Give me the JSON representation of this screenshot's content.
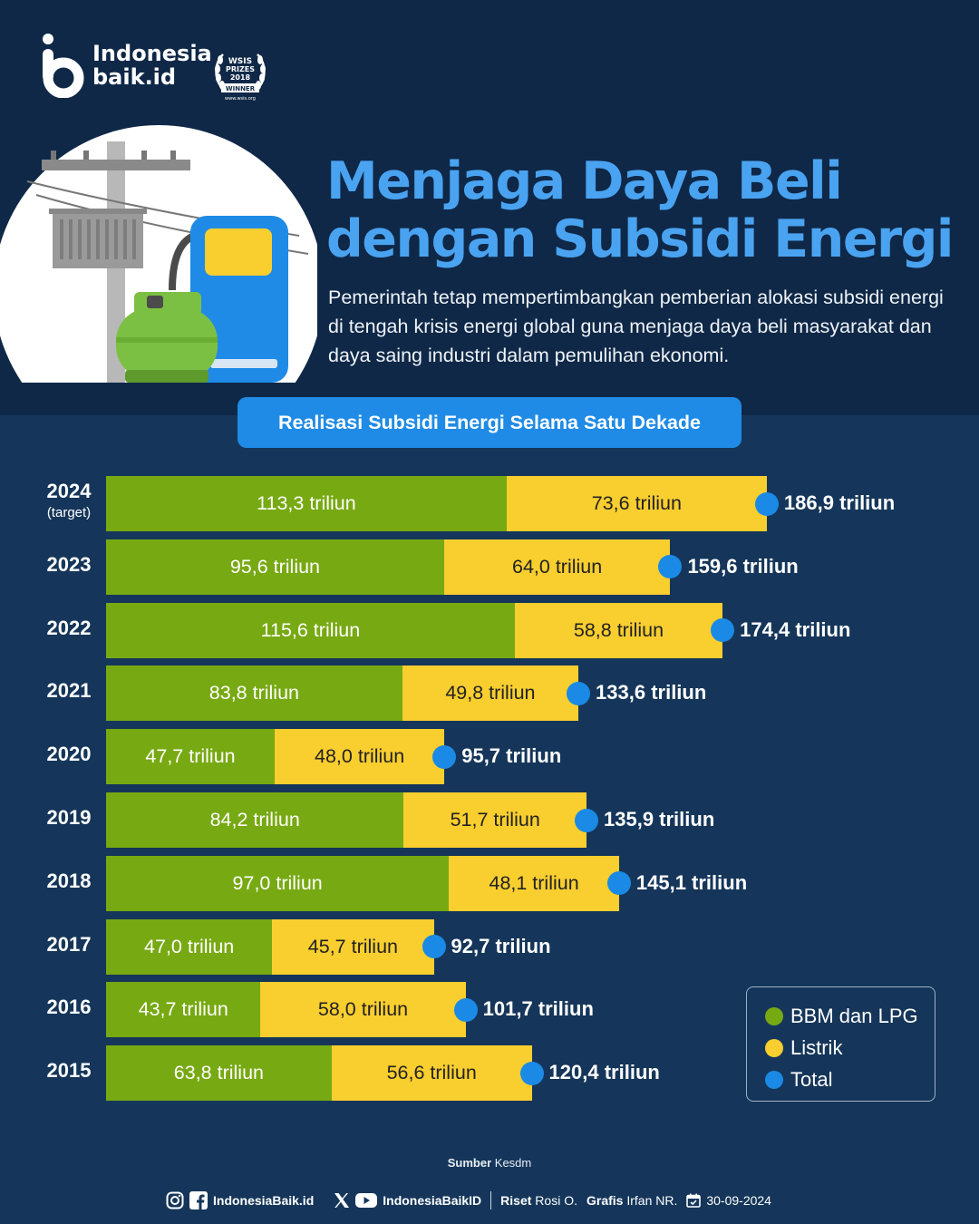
{
  "brand": {
    "line1": "Indonesia",
    "line2": "baik.id"
  },
  "award": {
    "line1": "WSIS",
    "line2": "PRIZES",
    "line3": "2018",
    "line4": "WINNER",
    "url": "www.wsis.org"
  },
  "header": {
    "title_line1": "Menjaga Daya Beli",
    "title_line2": "dengan Subsidi Energi",
    "description": "Pemerintah tetap mempertimbangkan pemberian alokasi subsidi energi di tengah krisis energi global guna menjaga daya beli masyarakat dan daya saing industri dalam pemulihan ekonomi."
  },
  "colors": {
    "bbm": "#77a912",
    "listrik": "#f9ce2f",
    "total": "#1a8ae6",
    "title": "#4aa3f0"
  },
  "chart_data": {
    "type": "bar",
    "orientation": "horizontal",
    "stacked": true,
    "title": "Realisasi Subsidi Energi Selama Satu Dekade",
    "categories": [
      "2024",
      "2023",
      "2022",
      "2021",
      "2020",
      "2019",
      "2018",
      "2017",
      "2016",
      "2015"
    ],
    "category_notes": {
      "2024": "(target)"
    },
    "unit_suffix": "triliun",
    "series": [
      {
        "name": "BBM dan LPG",
        "values": [
          113.3,
          95.6,
          115.6,
          83.8,
          47.7,
          84.2,
          97.0,
          47.0,
          43.7,
          63.8
        ],
        "labels": [
          "113,3 triliun",
          "95,6 triliun",
          "115,6 triliun",
          "83,8 triliun",
          "47,7 triliun",
          "84,2 triliun",
          "97,0 triliun",
          "47,0 triliun",
          "43,7 triliun",
          "63,8 triliun"
        ]
      },
      {
        "name": "Listrik",
        "values": [
          73.6,
          64.0,
          58.8,
          49.8,
          48.0,
          51.7,
          48.1,
          45.7,
          58.0,
          56.6
        ],
        "labels": [
          "73,6 triliun",
          "64,0 triliun",
          "58,8 triliun",
          "49,8 triliun",
          "48,0 triliun",
          "51,7 triliun",
          "48,1 triliun",
          "45,7 triliun",
          "58,0 triliun",
          "56,6 triliun"
        ]
      }
    ],
    "totals": {
      "name": "Total",
      "values": [
        186.9,
        159.6,
        174.4,
        133.6,
        95.7,
        135.9,
        145.1,
        92.7,
        101.7,
        120.4
      ],
      "labels": [
        "186,9 triliun",
        "159,6 triliun",
        "174,4 triliun",
        "133,6 triliun",
        "95,7 triliun",
        "135,9 triliun",
        "145,1 triliun",
        "92,7 triliun",
        "101,7 triliun",
        "120,4 triliun"
      ]
    },
    "legend_position": "bottom-right",
    "grid": false
  },
  "footer": {
    "source_label": "Sumber",
    "source_value": "Kesdm",
    "handle1": "IndonesiaBaik.id",
    "handle2": "IndonesiaBaikID",
    "riset_label": "Riset",
    "riset_value": "Rosi O.",
    "grafis_label": "Grafis",
    "grafis_value": "Irfan NR.",
    "date": "30-09-2024"
  }
}
